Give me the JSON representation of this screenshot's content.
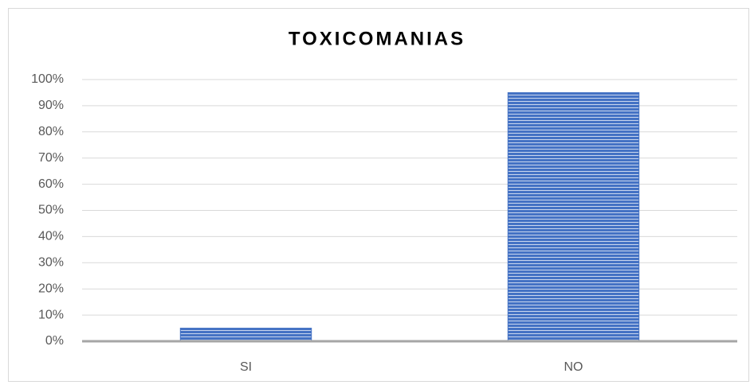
{
  "chart_data": {
    "type": "bar",
    "title": "TOXICOMANIAS",
    "categories": [
      "SI",
      "NO"
    ],
    "values": [
      5,
      95
    ],
    "color": "#4472c4",
    "ylim": [
      0,
      100
    ],
    "yticks": [
      {
        "value": 0,
        "label": "0%"
      },
      {
        "value": 10,
        "label": "10%"
      },
      {
        "value": 20,
        "label": "20%"
      },
      {
        "value": 30,
        "label": "30%"
      },
      {
        "value": 40,
        "label": "40%"
      },
      {
        "value": 50,
        "label": "50%"
      },
      {
        "value": 60,
        "label": "60%"
      },
      {
        "value": 70,
        "label": "70%"
      },
      {
        "value": 80,
        "label": "80%"
      },
      {
        "value": 90,
        "label": "90%"
      },
      {
        "value": 100,
        "label": "100%"
      }
    ],
    "grid": true
  }
}
